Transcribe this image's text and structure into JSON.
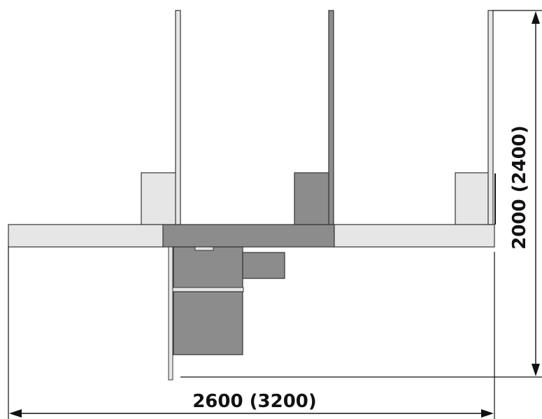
{
  "dimensions": {
    "width_label": "2600 (3200)",
    "height_label": "2000 (2400)"
  },
  "colors": {
    "light_fill": "#e6e6e6",
    "dark_fill": "#8c8c8c",
    "outline": "#333333",
    "line": "#111111",
    "background": "#ffffff"
  }
}
